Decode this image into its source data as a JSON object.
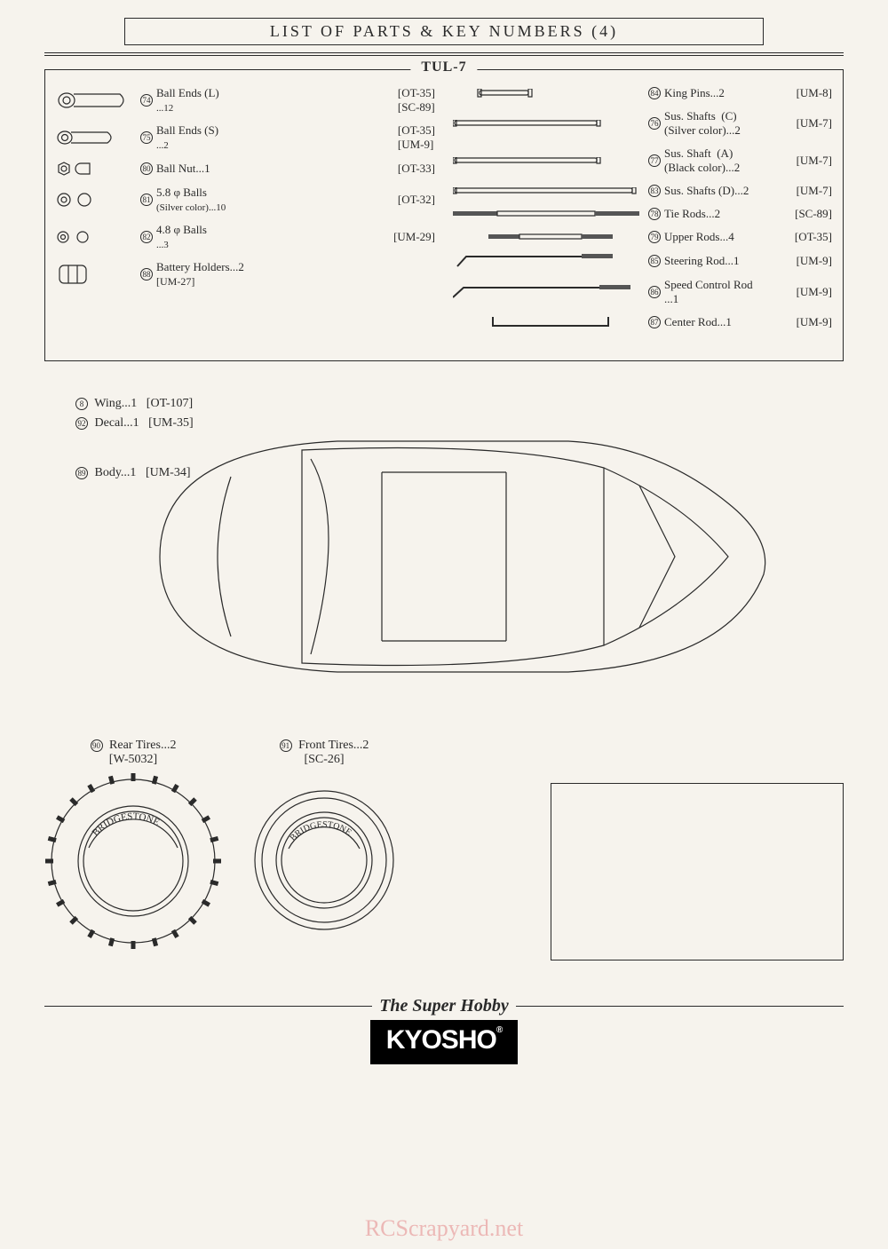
{
  "page": {
    "title": "LIST  OF  PARTS  &  KEY  NUMBERS    (4)",
    "section_label": "TUL-7",
    "footer_tagline": "The Super Hobby",
    "brand": "KYOSHO",
    "watermark": "RCScrapyard.net"
  },
  "colors": {
    "bg": "#f6f3ed",
    "ink": "#2a2a2a",
    "watermark": "#e8a0a0",
    "logo_bg": "#000000",
    "logo_fg": "#ffffff"
  },
  "left_parts": [
    {
      "num": "74",
      "name": "Ball Ends  (L)",
      "qty": "...12",
      "codes": "[OT-35]\n[SC-89]",
      "icon": "ball-end-l"
    },
    {
      "num": "75",
      "name": "Ball Ends  (S)",
      "qty": "...2",
      "codes": "[OT-35]\n[UM-9]",
      "icon": "ball-end-s"
    },
    {
      "num": "80",
      "name": "Ball Nut...1",
      "qty": "",
      "codes": "[OT-33]",
      "icon": "ball-nut"
    },
    {
      "num": "81",
      "name": "5.8 φ Balls",
      "qty": "(Silver color)...10",
      "codes": "[OT-32]",
      "icon": "ball-58"
    },
    {
      "num": "82",
      "name": "4.8 φ Balls",
      "qty": "...3",
      "codes": "[UM-29]",
      "icon": "ball-48"
    },
    {
      "num": "88",
      "name": "Battery Holders...2",
      "qty": "",
      "codes": "[UM-27]",
      "icon": "batt-holder"
    }
  ],
  "right_parts": [
    {
      "num": "84",
      "name": "King Pins...2",
      "codes": "[UM-8]",
      "icon": "pin-short"
    },
    {
      "num": "76",
      "name": "Sus. Shafts  (C)\n(Silver color)...2",
      "codes": "[UM-7]",
      "icon": "shaft-med"
    },
    {
      "num": "77",
      "name": "Sus. Shaft  (A)\n(Black color)...2",
      "codes": "[UM-7]",
      "icon": "shaft-med"
    },
    {
      "num": "83",
      "name": "Sus. Shafts  (D)...2",
      "codes": "[UM-7]",
      "icon": "shaft-long"
    },
    {
      "num": "78",
      "name": "Tie Rods...2",
      "codes": "[SC-89]",
      "icon": "tie-rod"
    },
    {
      "num": "79",
      "name": "Upper Rods...4",
      "codes": "[OT-35]",
      "icon": "upper-rod"
    },
    {
      "num": "85",
      "name": "Steering Rod...1",
      "codes": "[UM-9]",
      "icon": "bent-rod"
    },
    {
      "num": "86",
      "name": "Speed Control Rod\n...1",
      "codes": "[UM-9]",
      "icon": "bent-rod-long"
    },
    {
      "num": "87",
      "name": "Center Rod...1",
      "codes": "[UM-9]",
      "icon": "u-rod"
    }
  ],
  "mid_parts": [
    {
      "num": "8",
      "name": "Wing...1",
      "codes": "[OT-107]"
    },
    {
      "num": "92",
      "name": "Decal...1",
      "codes": "[UM-35]"
    },
    {
      "num": "89",
      "name": "Body...1",
      "codes": "[UM-34]"
    }
  ],
  "tires": {
    "rear": {
      "num": "90",
      "name": "Rear Tires...2",
      "codes": "[W-5032]",
      "brand": "BRIDGESTONE"
    },
    "front": {
      "num": "91",
      "name": "Front Tires...2",
      "codes": "[SC-26]",
      "brand": "BRIDGESTONE"
    }
  }
}
